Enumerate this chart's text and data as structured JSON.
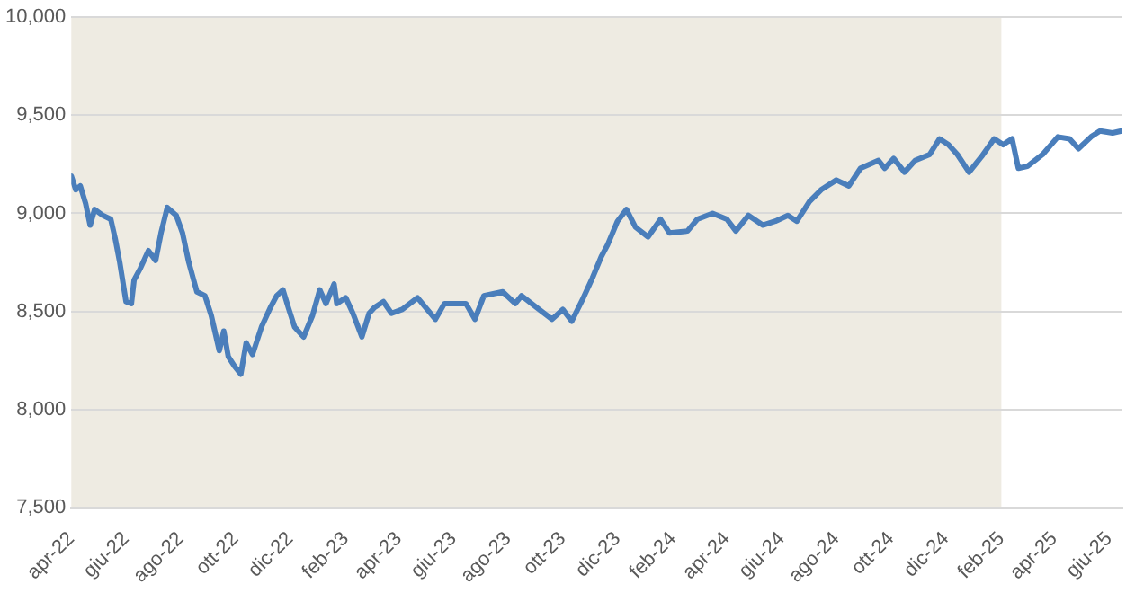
{
  "chart_data": {
    "type": "line",
    "x": [
      "2022-04-01",
      "2022-04-06",
      "2022-04-11",
      "2022-04-17",
      "2022-04-22",
      "2022-04-27",
      "2022-05-06",
      "2022-05-15",
      "2022-05-20",
      "2022-05-25",
      "2022-06-01",
      "2022-06-07",
      "2022-06-10",
      "2022-06-17",
      "2022-06-26",
      "2022-07-04",
      "2022-07-10",
      "2022-07-17",
      "2022-07-27",
      "2022-08-03",
      "2022-08-10",
      "2022-08-19",
      "2022-08-28",
      "2022-09-04",
      "2022-09-13",
      "2022-09-18",
      "2022-09-23",
      "2022-09-30",
      "2022-10-07",
      "2022-10-13",
      "2022-10-20",
      "2022-10-30",
      "2022-11-09",
      "2022-11-16",
      "2022-11-23",
      "2022-11-29",
      "2022-12-06",
      "2022-12-16",
      "2022-12-26",
      "2023-01-03",
      "2023-01-10",
      "2023-01-19",
      "2023-01-22",
      "2023-02-01",
      "2023-02-09",
      "2023-02-19",
      "2023-02-27",
      "2023-03-05",
      "2023-03-15",
      "2023-03-24",
      "2023-04-05",
      "2023-04-22",
      "2023-05-12",
      "2023-05-22",
      "2023-06-01",
      "2023-06-15",
      "2023-06-25",
      "2023-07-05",
      "2023-07-26",
      "2023-08-09",
      "2023-08-16",
      "2023-09-02",
      "2023-09-19",
      "2023-10-01",
      "2023-10-11",
      "2023-10-24",
      "2023-11-03",
      "2023-11-13",
      "2023-11-20",
      "2023-12-01",
      "2023-12-11",
      "2023-12-21",
      "2024-01-04",
      "2024-01-18",
      "2024-01-28",
      "2024-02-17",
      "2024-02-28",
      "2024-03-16",
      "2024-04-01",
      "2024-04-11",
      "2024-04-25",
      "2024-05-11",
      "2024-05-25",
      "2024-06-08",
      "2024-06-18",
      "2024-07-02",
      "2024-07-15",
      "2024-08-01",
      "2024-08-15",
      "2024-08-28",
      "2024-09-17",
      "2024-09-24",
      "2024-10-04",
      "2024-10-16",
      "2024-10-28",
      "2024-11-13",
      "2024-11-24",
      "2024-12-04",
      "2024-12-14",
      "2024-12-27",
      "2025-01-10",
      "2025-01-24",
      "2025-02-03",
      "2025-02-13",
      "2025-02-20",
      "2025-03-02",
      "2025-03-19",
      "2025-04-05",
      "2025-04-18",
      "2025-04-28",
      "2025-05-12",
      "2025-05-22",
      "2025-06-05",
      "2025-06-15"
    ],
    "series": [
      {
        "color": "#4a7ebb",
        "values": [
          9190,
          9120,
          9140,
          9050,
          8940,
          9020,
          8990,
          8970,
          8870,
          8750,
          8550,
          8540,
          8660,
          8720,
          8810,
          8760,
          8900,
          9030,
          8990,
          8900,
          8750,
          8600,
          8580,
          8480,
          8300,
          8400,
          8270,
          8220,
          8180,
          8340,
          8280,
          8420,
          8520,
          8580,
          8610,
          8520,
          8420,
          8370,
          8480,
          8610,
          8540,
          8640,
          8540,
          8570,
          8490,
          8370,
          8490,
          8520,
          8550,
          8490,
          8510,
          8570,
          8460,
          8540,
          8540,
          8540,
          8460,
          8580,
          8600,
          8540,
          8580,
          8520,
          8460,
          8510,
          8450,
          8570,
          8670,
          8780,
          8840,
          8960,
          9020,
          8930,
          8880,
          8970,
          8900,
          8910,
          8970,
          9000,
          8970,
          8910,
          8990,
          8940,
          8960,
          8990,
          8960,
          9060,
          9120,
          9170,
          9140,
          9230,
          9270,
          9230,
          9280,
          9210,
          9270,
          9300,
          9380,
          9350,
          9300,
          9210,
          9290,
          9380,
          9350,
          9380,
          9230,
          9240,
          9300,
          9390,
          9380,
          9330,
          9390,
          9420,
          9410,
          9420
        ]
      }
    ],
    "xlim": [
      "2022-04-01",
      "2025-06-16"
    ],
    "xticks": [
      {
        "value": "2022-04-01",
        "label": "apr-22"
      },
      {
        "value": "2022-06-01",
        "label": "giu-22"
      },
      {
        "value": "2022-08-01",
        "label": "ago-22"
      },
      {
        "value": "2022-10-01",
        "label": "ott-22"
      },
      {
        "value": "2022-12-01",
        "label": "dic-22"
      },
      {
        "value": "2023-02-01",
        "label": "feb-23"
      },
      {
        "value": "2023-04-01",
        "label": "apr-23"
      },
      {
        "value": "2023-06-01",
        "label": "giu-23"
      },
      {
        "value": "2023-08-01",
        "label": "ago-23"
      },
      {
        "value": "2023-10-01",
        "label": "ott-23"
      },
      {
        "value": "2023-12-01",
        "label": "dic-23"
      },
      {
        "value": "2024-02-01",
        "label": "feb-24"
      },
      {
        "value": "2024-04-01",
        "label": "apr-24"
      },
      {
        "value": "2024-06-01",
        "label": "giu-24"
      },
      {
        "value": "2024-08-01",
        "label": "ago-24"
      },
      {
        "value": "2024-10-01",
        "label": "ott-24"
      },
      {
        "value": "2024-12-01",
        "label": "dic-24"
      },
      {
        "value": "2025-02-01",
        "label": "feb-25"
      },
      {
        "value": "2025-04-01",
        "label": "apr-25"
      },
      {
        "value": "2025-06-01",
        "label": "giu-25"
      }
    ],
    "ylim": [
      7500,
      10000
    ],
    "yticks": [
      {
        "value": 7500,
        "label": "7,500"
      },
      {
        "value": 8000,
        "label": "8,000"
      },
      {
        "value": 8500,
        "label": "8,500"
      },
      {
        "value": 9000,
        "label": "9,000"
      },
      {
        "value": 9500,
        "label": "9,500"
      },
      {
        "value": 10000,
        "label": "10,000"
      }
    ],
    "bands": [
      {
        "axis": "x",
        "from": "2022-04-01",
        "to": "2025-02-01",
        "color": "#eeebe2"
      }
    ],
    "grid": "y",
    "marker": "none",
    "line_style": "solid",
    "legend": false
  }
}
